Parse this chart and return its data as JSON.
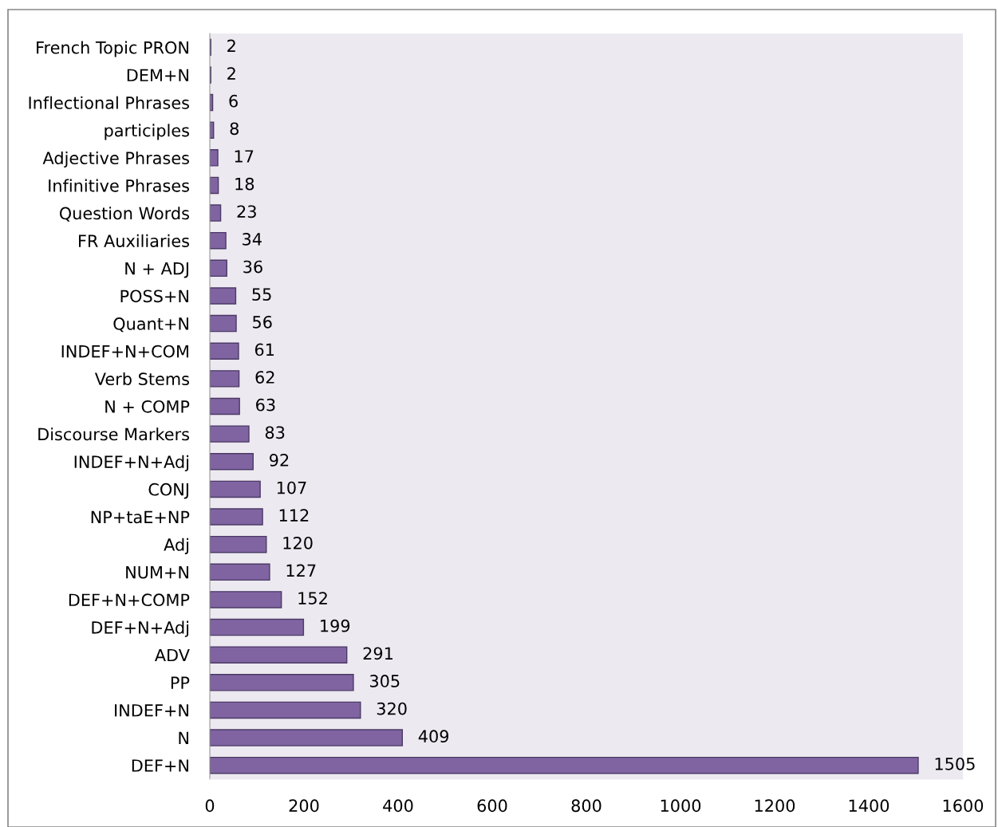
{
  "chart_data": {
    "type": "bar",
    "orientation": "horizontal",
    "categories": [
      "French Topic PRON",
      "DEM+N",
      "Inflectional Phrases",
      "participles",
      "Adjective Phrases",
      "Infinitive Phrases",
      "Question Words",
      "FR Auxiliaries",
      "N + ADJ",
      "POSS+N",
      "Quant+N",
      "INDEF+N+COM",
      "Verb Stems",
      "N + COMP",
      "Discourse Markers",
      "INDEF+N+Adj",
      "CONJ",
      "NP+taE+NP",
      "Adj",
      "NUM+N",
      "DEF+N+COMP",
      "DEF+N+Adj",
      "ADV",
      "PP",
      "INDEF+N",
      "N",
      "DEF+N"
    ],
    "values": [
      2,
      2,
      6,
      8,
      17,
      18,
      23,
      34,
      36,
      55,
      56,
      61,
      62,
      63,
      83,
      92,
      107,
      112,
      120,
      127,
      152,
      199,
      291,
      305,
      320,
      409,
      1505
    ],
    "color": "#8064a2",
    "xlim": [
      0,
      1600
    ],
    "xticks": [
      0,
      200,
      400,
      600,
      800,
      1000,
      1200,
      1400,
      1600
    ],
    "data_labels": true,
    "grid": false,
    "legend": false
  }
}
